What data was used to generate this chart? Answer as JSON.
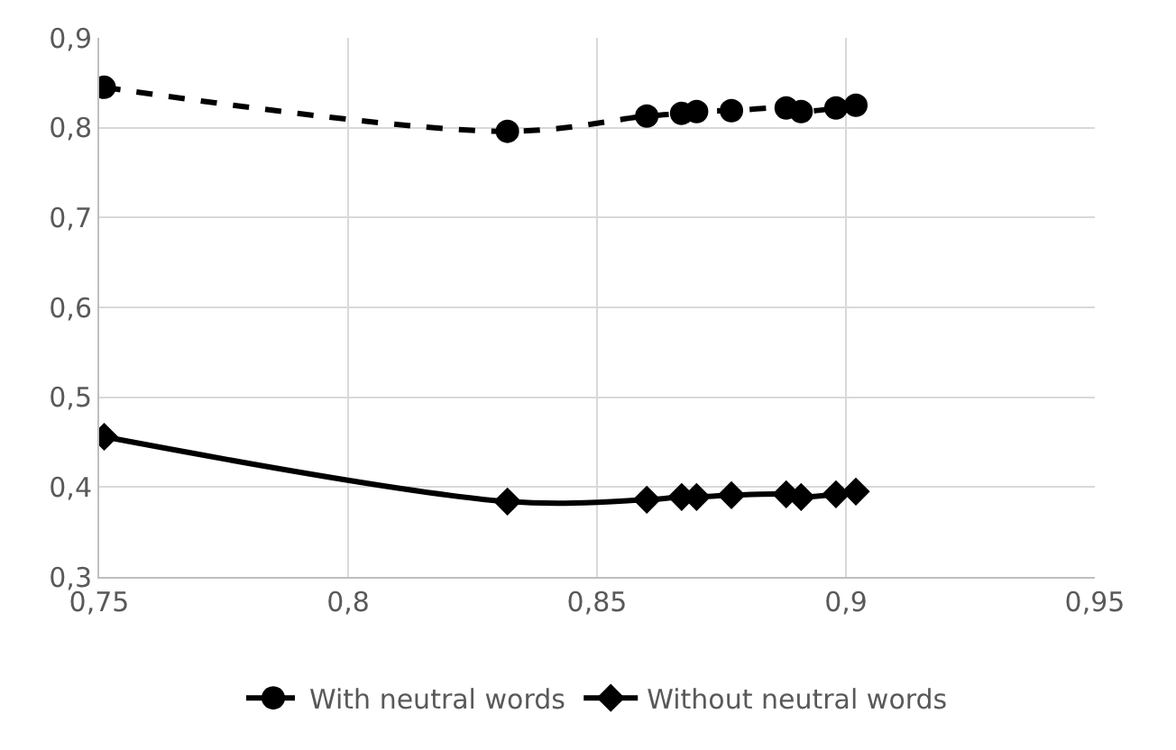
{
  "chart_data": {
    "type": "line",
    "x": [
      0.751,
      0.832,
      0.86,
      0.867,
      0.87,
      0.877,
      0.888,
      0.891,
      0.898,
      0.902
    ],
    "series": [
      {
        "name": "With neutral words",
        "color": "#000000",
        "marker": "circle",
        "line_style": "dashed",
        "values": [
          0.845,
          0.796,
          0.813,
          0.816,
          0.818,
          0.819,
          0.822,
          0.818,
          0.822,
          0.825
        ]
      },
      {
        "name": "Without neutral words",
        "color": "#000000",
        "marker": "diamond",
        "line_style": "solid",
        "values": [
          0.456,
          0.384,
          0.386,
          0.389,
          0.389,
          0.391,
          0.392,
          0.389,
          0.392,
          0.395
        ]
      }
    ],
    "xlim": [
      0.75,
      0.95
    ],
    "xticks": [
      {
        "value": 0.75,
        "label": "0,75"
      },
      {
        "value": 0.8,
        "label": "0,8"
      },
      {
        "value": 0.85,
        "label": "0,85"
      },
      {
        "value": 0.9,
        "label": "0,9"
      },
      {
        "value": 0.95,
        "label": "0,95"
      }
    ],
    "ylim": [
      0.3,
      0.9
    ],
    "yticks": [
      {
        "value": 0.3,
        "label": "0,3"
      },
      {
        "value": 0.4,
        "label": "0,4"
      },
      {
        "value": 0.5,
        "label": "0,5"
      },
      {
        "value": 0.6,
        "label": "0,6"
      },
      {
        "value": 0.7,
        "label": "0,7"
      },
      {
        "value": 0.8,
        "label": "0,8"
      },
      {
        "value": 0.9,
        "label": "0,9"
      }
    ],
    "grid": true,
    "legend": "bottom"
  }
}
